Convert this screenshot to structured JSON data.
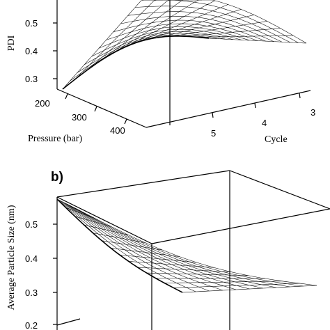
{
  "chart_data": [
    {
      "panel": "",
      "type": "surface",
      "title": "",
      "zlabel": "PDI",
      "xlabel": "Pressure (bar)",
      "ylabel": "Cycle",
      "z_ticks": [
        "0.3",
        "0.4",
        "0.5"
      ],
      "x_ticks": [
        "200",
        "300",
        "400"
      ],
      "y_ticks": [
        "3",
        "4",
        "5"
      ],
      "zlim": [
        0.25,
        0.6
      ],
      "xlim": [
        200,
        450
      ],
      "ylim": [
        3,
        5.5
      ],
      "grid": [
        12,
        12
      ]
    },
    {
      "panel": "b)",
      "type": "surface",
      "title": "",
      "zlabel": "Average Particle Size (nm)",
      "z_ticks": [
        "0.2",
        "0.3",
        "0.4",
        "0.5"
      ],
      "zlim": [
        0.2,
        0.55
      ],
      "grid": [
        14,
        10
      ]
    }
  ]
}
